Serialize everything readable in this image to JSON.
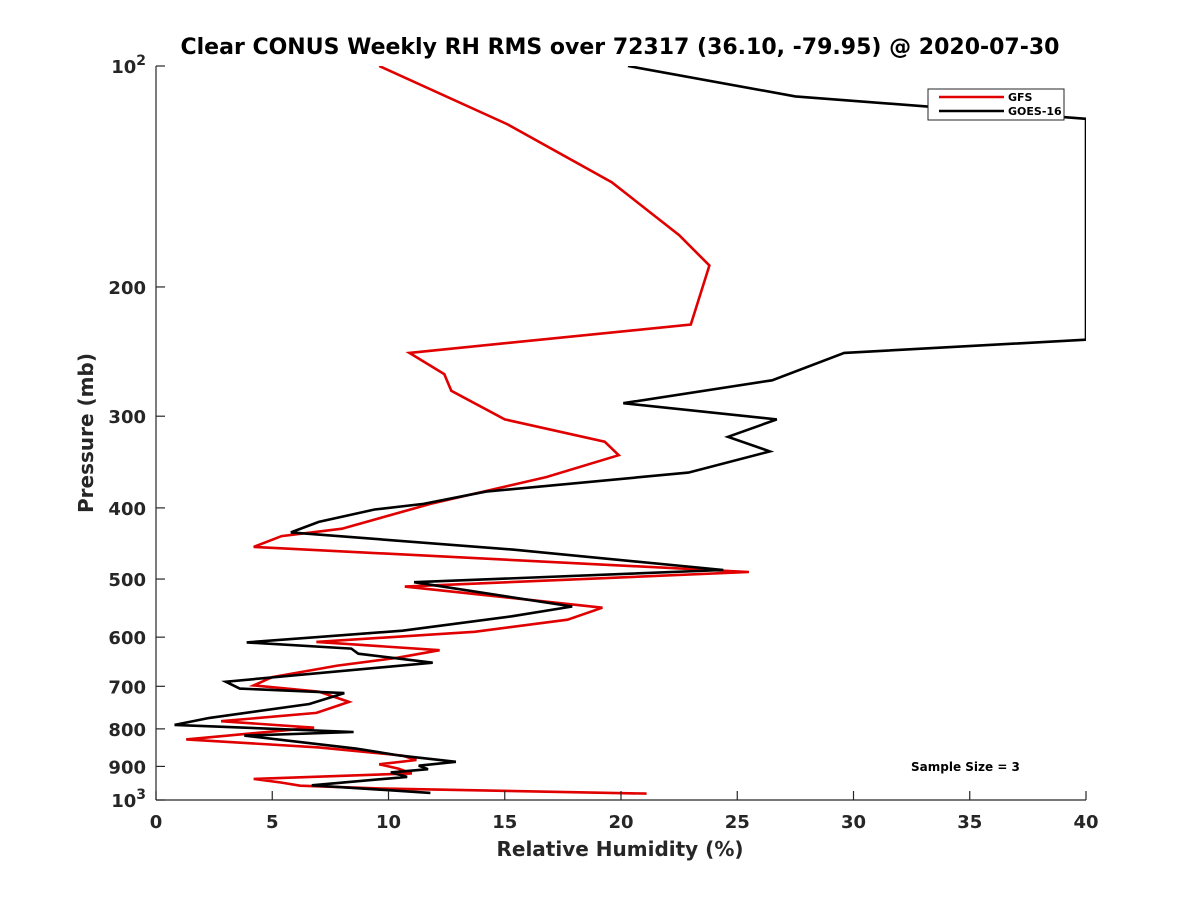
{
  "chart_data": {
    "type": "line",
    "title": "Clear CONUS Weekly RH RMS over 72317 (36.10, -79.95) @ 2020-07-30",
    "xlabel": "Relative Humidity (%)",
    "ylabel": "Pressure (mb)",
    "xlim": [
      0,
      40
    ],
    "ylim": [
      100,
      1000
    ],
    "yscale": "log",
    "y_reversed": true,
    "x_ticks": [
      "0",
      "5",
      "10",
      "15",
      "20",
      "25",
      "30",
      "35",
      "40"
    ],
    "y_ticks": [
      {
        "value": 100,
        "base": "10",
        "exp": "2"
      },
      {
        "value": 200,
        "label": "200"
      },
      {
        "value": 300,
        "label": "300"
      },
      {
        "value": 400,
        "label": "400"
      },
      {
        "value": 500,
        "label": "500"
      },
      {
        "value": 600,
        "label": "600"
      },
      {
        "value": 700,
        "label": "700"
      },
      {
        "value": 800,
        "label": "800"
      },
      {
        "value": 900,
        "label": "900"
      },
      {
        "value": 1000,
        "base": "10",
        "exp": "3"
      }
    ],
    "grid": false,
    "legend_position": "top-right",
    "annotation": "Sample Size = 3",
    "series": [
      {
        "name": "GFS",
        "color": "#e00000",
        "points": [
          [
            9.6,
            100
          ],
          [
            15.1,
            120
          ],
          [
            19.6,
            144
          ],
          [
            22.5,
            170
          ],
          [
            23.8,
            187
          ],
          [
            23.0,
            225
          ],
          [
            10.9,
            246
          ],
          [
            12.4,
            263
          ],
          [
            12.7,
            277
          ],
          [
            15.0,
            303
          ],
          [
            19.3,
            325
          ],
          [
            19.9,
            339
          ],
          [
            16.8,
            363
          ],
          [
            11.8,
            395
          ],
          [
            8.0,
            427
          ],
          [
            5.4,
            437
          ],
          [
            4.2,
            452
          ],
          [
            25.5,
            489
          ],
          [
            10.7,
            512
          ],
          [
            19.2,
            547
          ],
          [
            17.7,
            568
          ],
          [
            13.7,
            590
          ],
          [
            6.9,
            609
          ],
          [
            12.2,
            625
          ],
          [
            10.4,
            640
          ],
          [
            7.8,
            656
          ],
          [
            5.0,
            680
          ],
          [
            4.2,
            698
          ],
          [
            7.0,
            712
          ],
          [
            8.3,
            735
          ],
          [
            7.7,
            746
          ],
          [
            6.9,
            761
          ],
          [
            2.8,
            781
          ],
          [
            6.8,
            797
          ],
          [
            1.3,
            827
          ],
          [
            7.0,
            848
          ],
          [
            10.6,
            870
          ],
          [
            11.2,
            882
          ],
          [
            9.6,
            894
          ],
          [
            10.4,
            906
          ],
          [
            11.0,
            920
          ],
          [
            4.2,
            936
          ],
          [
            5.4,
            947
          ],
          [
            6.2,
            956
          ],
          [
            9.8,
            965
          ],
          [
            21.1,
            980
          ]
        ]
      },
      {
        "name": "GOES-16",
        "color": "#000000",
        "points": [
          [
            20.3,
            100
          ],
          [
            27.5,
            110
          ],
          [
            40.0,
            118
          ],
          [
            40.0,
            236
          ],
          [
            29.6,
            246
          ],
          [
            26.5,
            268
          ],
          [
            20.1,
            288
          ],
          [
            26.7,
            303
          ],
          [
            24.6,
            320
          ],
          [
            26.4,
            335
          ],
          [
            22.9,
            358
          ],
          [
            14.2,
            380
          ],
          [
            11.5,
            395
          ],
          [
            9.4,
            402
          ],
          [
            7.0,
            418
          ],
          [
            5.8,
            432
          ],
          [
            15.4,
            456
          ],
          [
            24.4,
            486
          ],
          [
            11.1,
            505
          ],
          [
            17.9,
            545
          ],
          [
            15.3,
            562
          ],
          [
            10.6,
            588
          ],
          [
            3.9,
            610
          ],
          [
            8.4,
            622
          ],
          [
            8.7,
            632
          ],
          [
            11.9,
            650
          ],
          [
            3.0,
            690
          ],
          [
            3.6,
            705
          ],
          [
            8.1,
            715
          ],
          [
            6.6,
            740
          ],
          [
            2.3,
            773
          ],
          [
            0.8,
            790
          ],
          [
            8.5,
            808
          ],
          [
            3.8,
            817
          ],
          [
            8.6,
            851
          ],
          [
            10.5,
            870
          ],
          [
            12.9,
            887
          ],
          [
            11.3,
            898
          ],
          [
            11.7,
            908
          ],
          [
            10.1,
            917
          ],
          [
            10.8,
            930
          ],
          [
            6.7,
            955
          ],
          [
            11.8,
            978
          ]
        ]
      }
    ]
  }
}
